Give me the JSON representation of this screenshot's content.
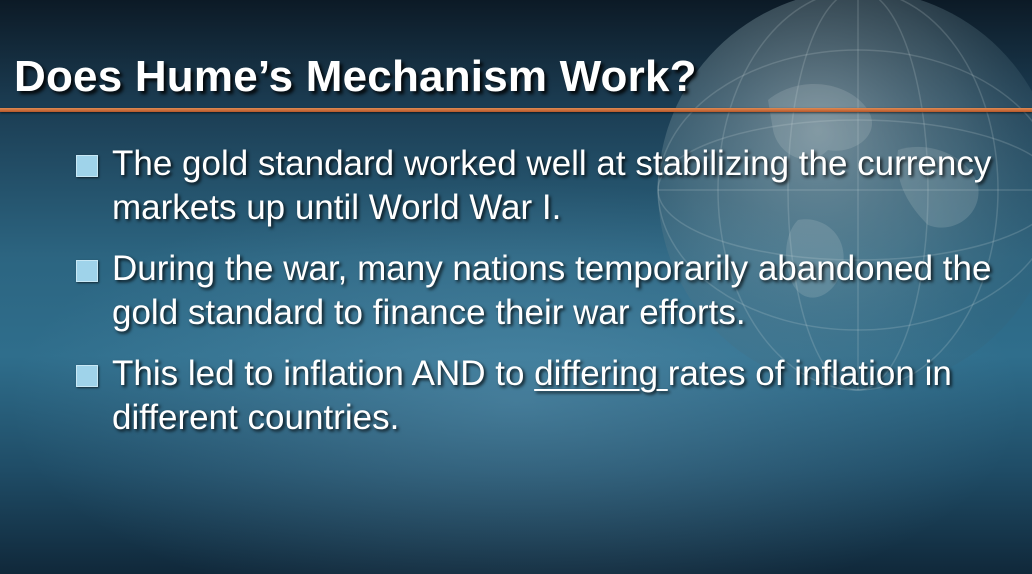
{
  "slide": {
    "title": "Does Hume’s Mechanism Work?",
    "bullets": [
      {
        "text": "The gold standard worked well at stabilizing the currency markets up until World War I."
      },
      {
        "text": "During the war, many nations temporarily abandoned the gold standard to finance their war efforts."
      },
      {
        "before": "This led to inflation AND to ",
        "underlined": "differing ",
        "after": "rates of inflation in different countries."
      }
    ]
  },
  "theme": {
    "title_rule_color": "#c8622f",
    "bullet_marker_color": "#9fd3ea",
    "text_color": "#ffffff",
    "background_color": "#2c6581"
  },
  "decor": {
    "background_icon": "globe-icon",
    "bullet_icon": "square-bullet-icon"
  }
}
